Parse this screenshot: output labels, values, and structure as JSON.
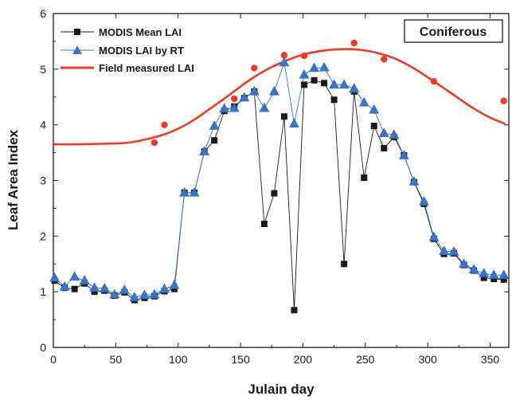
{
  "chart_data": {
    "type": "line",
    "title": "",
    "panel_label": "Coniferous",
    "xlabel": "Julain day",
    "ylabel": "Leaf Area Index",
    "xlim": [
      0,
      365
    ],
    "ylim": [
      0,
      6
    ],
    "xticks": [
      0,
      50,
      100,
      150,
      200,
      250,
      300,
      350
    ],
    "yticks": [
      0,
      1,
      2,
      3,
      4,
      5,
      6
    ],
    "grid": false,
    "legend_position": "top-left",
    "colors": {
      "mean": "#1a1a1a",
      "rt": "#3a74c8",
      "field": "#ee3a22"
    },
    "series": [
      {
        "name": "MODIS Mean LAI",
        "kind": "line-square",
        "x": [
          1,
          9,
          17,
          25,
          33,
          41,
          49,
          57,
          65,
          73,
          81,
          89,
          97,
          105,
          113,
          121,
          129,
          137,
          145,
          153,
          161,
          169,
          177,
          185,
          193,
          201,
          209,
          217,
          225,
          233,
          241,
          249,
          257,
          265,
          273,
          281,
          289,
          297,
          305,
          313,
          321,
          329,
          337,
          345,
          353,
          361
        ],
        "y": [
          1.2,
          1.07,
          1.05,
          1.15,
          1.0,
          1.02,
          0.93,
          0.99,
          0.85,
          0.89,
          0.92,
          1.01,
          1.05,
          2.78,
          2.78,
          3.52,
          3.72,
          4.25,
          4.33,
          4.48,
          4.6,
          2.22,
          2.77,
          4.15,
          0.67,
          4.72,
          4.8,
          4.75,
          4.45,
          1.5,
          4.6,
          3.05,
          3.98,
          3.58,
          3.78,
          3.45,
          2.97,
          2.58,
          1.95,
          1.68,
          1.69,
          1.48,
          1.38,
          1.25,
          1.23,
          1.22
        ]
      },
      {
        "name": "MODIS LAI by RT",
        "kind": "line-triangle",
        "x": [
          1,
          9,
          17,
          25,
          33,
          41,
          49,
          57,
          65,
          73,
          81,
          89,
          97,
          105,
          113,
          121,
          129,
          137,
          145,
          153,
          161,
          169,
          177,
          185,
          193,
          201,
          209,
          217,
          225,
          233,
          241,
          249,
          257,
          265,
          273,
          281,
          289,
          297,
          305,
          313,
          321,
          329,
          337,
          345,
          353,
          361
        ],
        "y": [
          1.25,
          1.09,
          1.27,
          1.2,
          1.07,
          1.06,
          0.95,
          1.03,
          0.9,
          0.94,
          0.95,
          1.05,
          1.12,
          2.78,
          2.78,
          3.52,
          3.98,
          4.29,
          4.3,
          4.49,
          4.6,
          4.3,
          4.6,
          5.12,
          4.02,
          4.9,
          5.02,
          5.03,
          4.72,
          4.72,
          4.65,
          4.4,
          4.27,
          3.85,
          3.82,
          3.45,
          2.98,
          2.62,
          1.98,
          1.73,
          1.72,
          1.5,
          1.4,
          1.33,
          1.3,
          1.3
        ]
      },
      {
        "name": "Field measured LAI",
        "kind": "curve-dots",
        "curve_x": [
          0,
          20,
          40,
          60,
          80,
          95,
          110,
          125,
          140,
          155,
          170,
          185,
          200,
          215,
          230,
          245,
          260,
          275,
          290,
          305,
          320,
          335,
          350,
          362
        ],
        "curve_y": [
          3.65,
          3.65,
          3.66,
          3.68,
          3.77,
          3.88,
          4.05,
          4.28,
          4.52,
          4.77,
          4.98,
          5.14,
          5.26,
          5.33,
          5.36,
          5.35,
          5.29,
          5.18,
          5.0,
          4.78,
          4.55,
          4.32,
          4.13,
          4.02
        ],
        "points_x": [
          81,
          89,
          145,
          161,
          185,
          201,
          241,
          265,
          305,
          361
        ],
        "points_y": [
          3.68,
          4.0,
          4.47,
          5.02,
          5.25,
          5.24,
          5.47,
          5.18,
          4.78,
          4.43
        ]
      }
    ]
  }
}
